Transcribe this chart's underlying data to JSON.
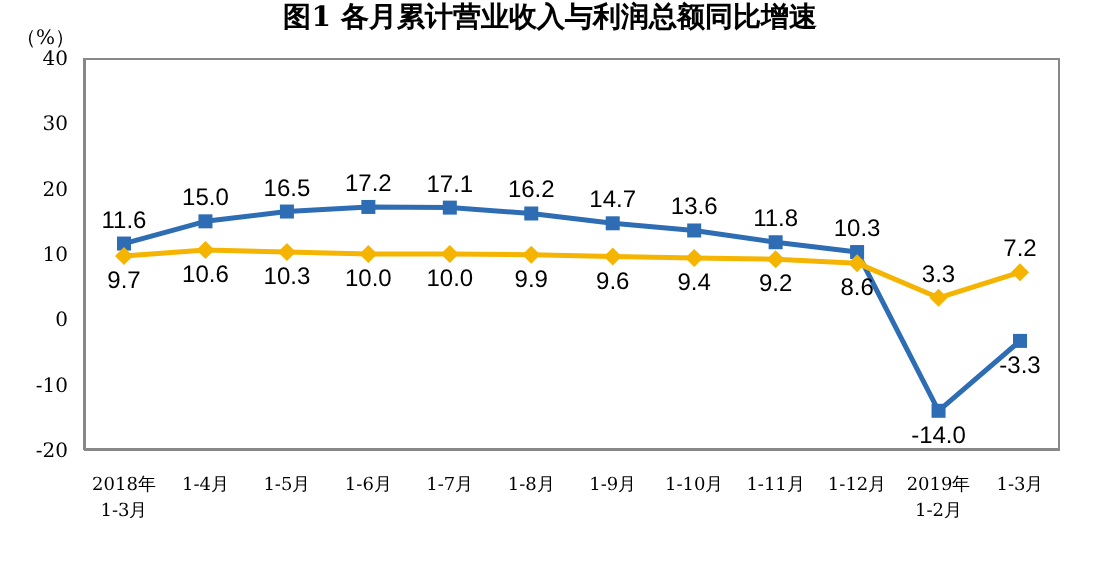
{
  "chart_data": {
    "type": "line",
    "title": "图1  各月累计营业收入与利润总额同比增速",
    "ylabel": "（%）",
    "categories": [
      "2018年\n1-3月",
      "1-4月",
      "1-5月",
      "1-6月",
      "1-7月",
      "1-8月",
      "1-9月",
      "1-10月",
      "1-11月",
      "1-12月",
      "2019年\n1-2月",
      "1-3月"
    ],
    "series": [
      {
        "color": "#2e6db4",
        "marker": "square",
        "values": [
          11.6,
          15,
          16.5,
          17.2,
          17.1,
          16.2,
          14.7,
          13.6,
          11.8,
          10.3,
          -14,
          -3.3
        ],
        "value_labels": [
          "11.6",
          "15.0",
          "16.5",
          "17.2",
          "17.1",
          "16.2",
          "14.7",
          "13.6",
          "11.8",
          "10.3",
          "-14.0",
          "-3.3"
        ]
      },
      {
        "color": "#f4b400",
        "marker": "diamond",
        "values": [
          9.7,
          10.6,
          10.3,
          10,
          10,
          9.9,
          9.6,
          9.4,
          9.2,
          8.6,
          3.3,
          7.2
        ],
        "value_labels": [
          "9.7",
          "10.6",
          "10.3",
          "10.0",
          "10.0",
          "9.9",
          "9.6",
          "9.4",
          "9.2",
          "8.6",
          "3.3",
          "7.2"
        ]
      }
    ],
    "ylim": [
      -20,
      40
    ],
    "yticks": [
      -20,
      -10,
      0,
      10,
      20,
      30,
      40
    ],
    "grid": false,
    "legend": false,
    "line_style": "solid"
  }
}
